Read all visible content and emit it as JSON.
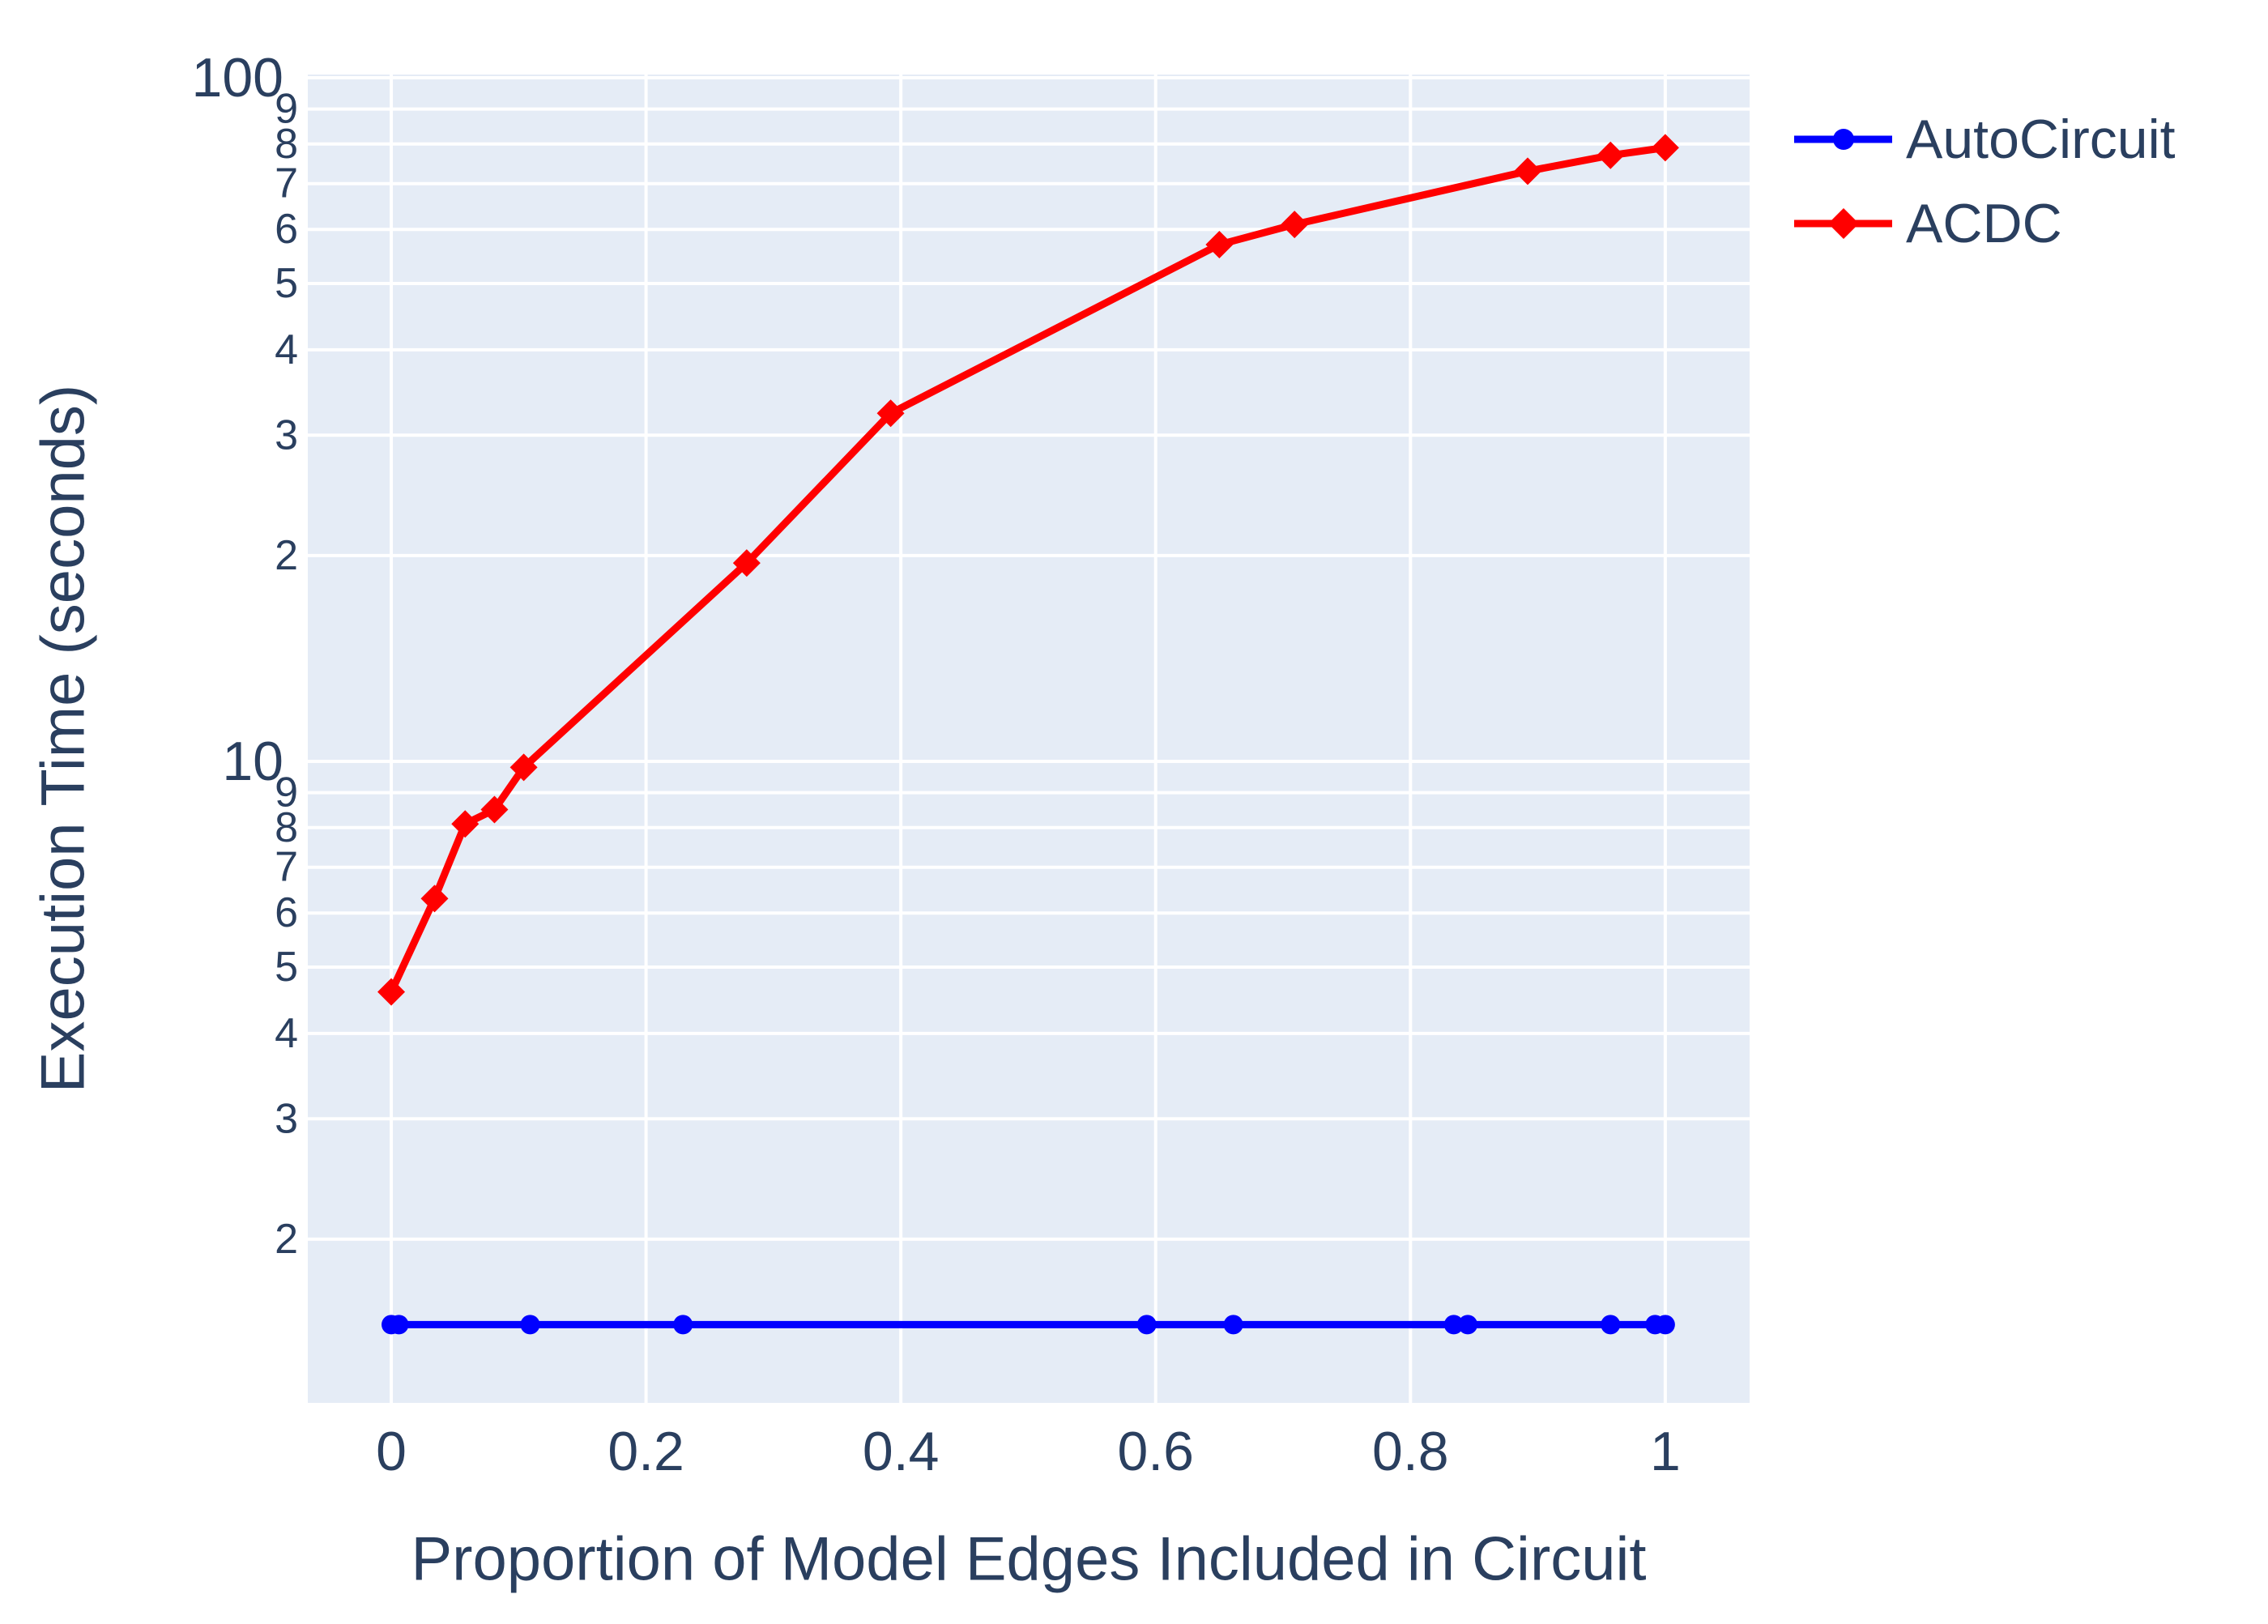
{
  "figure": {
    "x_axis": {
      "title": "Proportion of Model Edges Included in Circuit",
      "tick_labels": [
        "0",
        "0.2",
        "0.4",
        "0.6",
        "0.8",
        "1"
      ],
      "tick_values": [
        0,
        0.2,
        0.4,
        0.6,
        0.8,
        1.0
      ]
    },
    "y_axis": {
      "title": "Execution Time (seconds)",
      "scale": "log",
      "major_ticks": [
        {
          "value": 100,
          "label": "100"
        },
        {
          "value": 10,
          "label": "10"
        }
      ],
      "minor_ticks": [
        {
          "value": 90,
          "label": "9"
        },
        {
          "value": 80,
          "label": "8"
        },
        {
          "value": 70,
          "label": "7"
        },
        {
          "value": 60,
          "label": "6"
        },
        {
          "value": 50,
          "label": "5"
        },
        {
          "value": 40,
          "label": "4"
        },
        {
          "value": 30,
          "label": "3"
        },
        {
          "value": 20,
          "label": "2"
        },
        {
          "value": 9,
          "label": "9"
        },
        {
          "value": 8,
          "label": "8"
        },
        {
          "value": 7,
          "label": "7"
        },
        {
          "value": 6,
          "label": "6"
        },
        {
          "value": 5,
          "label": "5"
        },
        {
          "value": 4,
          "label": "4"
        },
        {
          "value": 3,
          "label": "3"
        },
        {
          "value": 2,
          "label": "2"
        }
      ]
    },
    "legend": [
      {
        "name": "AutoCircuit",
        "color": "#0000ff",
        "marker": "circle"
      },
      {
        "name": "ACDC",
        "color": "#ff0000",
        "marker": "diamond"
      }
    ],
    "colors": {
      "plot_background": "#e5ecf6",
      "gridline": "#ffffff",
      "text": "#2a3f5f",
      "autocircuit": "#0000ff",
      "acdc": "#ff0000"
    }
  },
  "chart_data": {
    "type": "line",
    "title": "",
    "xlabel": "Proportion of Model Edges Included in Circuit",
    "ylabel": "Execution Time (seconds)",
    "y_scale": "log",
    "grid": true,
    "legend_position": "top-right-outside",
    "x_range": [
      -0.0655,
      1.0662
    ],
    "y_log10_range": [
      0.0616,
      2.0047
    ],
    "x_gridlines": [
      0,
      0.2,
      0.4,
      0.6,
      0.8,
      1.0
    ],
    "y_gridlines": [
      100,
      90,
      80,
      70,
      60,
      50,
      40,
      30,
      20,
      10,
      9,
      8,
      7,
      6,
      5,
      4,
      3,
      2
    ],
    "series": [
      {
        "name": "AutoCircuit",
        "color": "#0000ff",
        "marker": "circle",
        "x": [
          0.0,
          0.006,
          0.109,
          0.229,
          0.593,
          0.661,
          0.834,
          0.845,
          0.957,
          0.992,
          1.0
        ],
        "y": [
          1.5,
          1.5,
          1.5,
          1.5,
          1.5,
          1.5,
          1.5,
          1.5,
          1.5,
          1.5,
          1.5
        ]
      },
      {
        "name": "ACDC",
        "color": "#ff0000",
        "marker": "diamond",
        "x": [
          0.0,
          0.034,
          0.058,
          0.081,
          0.104,
          0.279,
          0.392,
          0.65,
          0.709,
          0.892,
          0.957,
          1.0
        ],
        "y": [
          4.6,
          6.3,
          8.1,
          8.5,
          9.8,
          19.5,
          32.3,
          57.0,
          61.0,
          73.0,
          77.0,
          79.0
        ]
      }
    ]
  }
}
